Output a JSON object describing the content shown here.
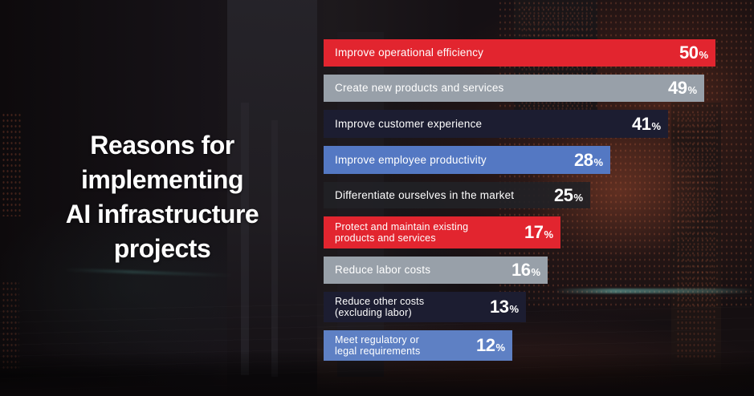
{
  "page": {
    "title_text": "Reasons for\nimplementing\nAI infrastructure\nprojects"
  },
  "chart_data": {
    "type": "bar",
    "orientation": "horizontal",
    "title": "Reasons for implementing AI infrastructure projects",
    "unit": "%",
    "legend": "none",
    "grid": false,
    "axes_visible": false,
    "categories": [
      "Improve operational efficiency",
      "Create new products and services",
      "Improve customer experience",
      "Improve employee productivity",
      "Differentiate ourselves in the market",
      "Protect and maintain existing products and services",
      "Reduce labor costs",
      "Reduce other costs (excluding labor)",
      "Meet regulatory or legal requirements"
    ],
    "values": [
      50,
      49,
      41,
      28,
      25,
      17,
      16,
      13,
      12
    ],
    "bars": [
      {
        "label": "Improve operational efficiency",
        "value": 50,
        "color": "#e2252f",
        "width_css": "488px"
      },
      {
        "label": "Create new products and services",
        "value": 49,
        "color": "#98a0a9",
        "width_css": "474px"
      },
      {
        "label": "Improve customer experience",
        "value": 41,
        "color": "#1c1d31",
        "width_css": "429px"
      },
      {
        "label": "Improve employee productivity",
        "value": 28,
        "color": "#5478c3",
        "width_css": "357px"
      },
      {
        "label": "Differentiate ourselves in the market",
        "value": 25,
        "color": "rgba(33,33,38,0.9)",
        "width_css": "332px"
      },
      {
        "label": "Protect and maintain existing\nproducts and services",
        "value": 17,
        "color": "#e2252f",
        "width_css": "295px"
      },
      {
        "label": "Reduce labor costs",
        "value": 16,
        "color": "#98a0a9",
        "width_css": "279px"
      },
      {
        "label": "Reduce other costs\n(excluding labor)",
        "value": 13,
        "color": "#1c1d31",
        "width_css": "252px"
      },
      {
        "label": "Meet regulatory or\nlegal requirements",
        "value": 12,
        "color": "#5e80c4",
        "width_css": "235px"
      }
    ]
  },
  "colors": {
    "background": "#151114",
    "accent_red": "#e2252f",
    "gray": "#98a0a9",
    "navy": "#1c1d31",
    "blue": "#5478c3",
    "title_text": "#ffffff"
  }
}
